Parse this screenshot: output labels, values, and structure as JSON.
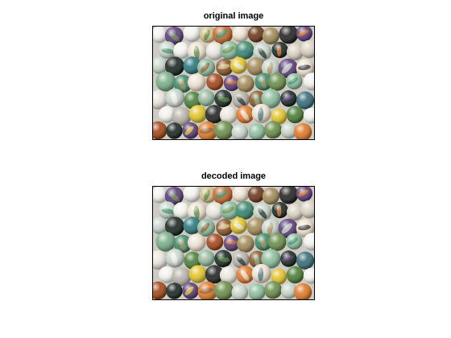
{
  "panels": [
    {
      "title": "original image",
      "image": "marbles-photo"
    },
    {
      "title": "decoded image",
      "image": "marbles-photo"
    }
  ]
}
